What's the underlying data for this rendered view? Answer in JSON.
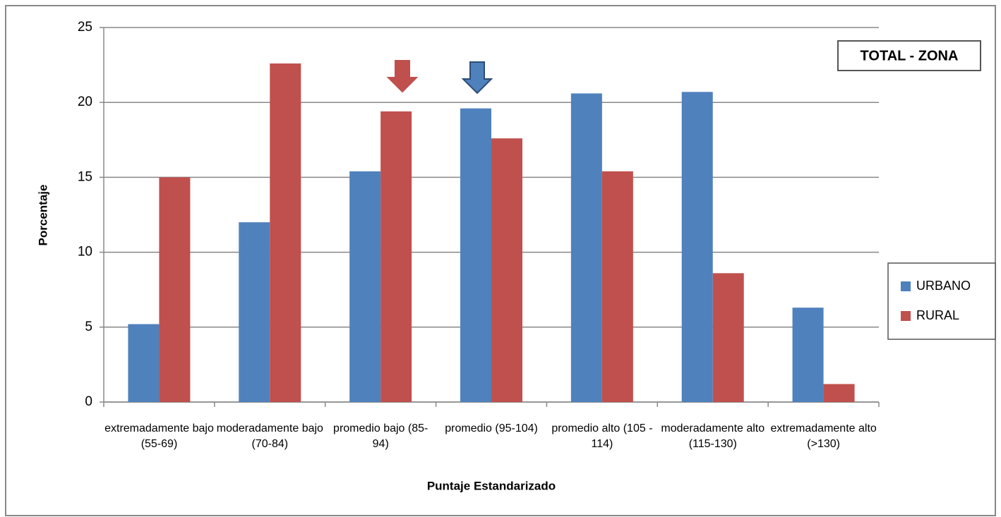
{
  "chart_data": {
    "type": "bar",
    "annotations": [
      "TOTAL - ZONA"
    ],
    "xlabel": "Puntaje Estandarizado",
    "ylabel": "Porcentaje",
    "categories": [
      "extremadamente bajo (55-69)",
      "moderadamente bajo (70-84)",
      "promedio bajo (85-94)",
      "promedio (95-104)",
      "promedio alto (105 - 114)",
      "moderadamente alto (115-130)",
      "extremadamente alto (>130)"
    ],
    "series": [
      {
        "name": "URBANO",
        "color": "#4f81bd",
        "values": [
          5.2,
          12,
          15.4,
          19.6,
          20.6,
          20.7,
          6.3
        ]
      },
      {
        "name": "RURAL",
        "color": "#c0504d",
        "values": [
          15,
          22.6,
          19.4,
          17.6,
          15.4,
          8.6,
          1.2
        ]
      }
    ],
    "ylim": [
      0,
      25
    ],
    "yticks": [
      0,
      5,
      10,
      15,
      20,
      25
    ],
    "grid": true,
    "legend": "right"
  }
}
